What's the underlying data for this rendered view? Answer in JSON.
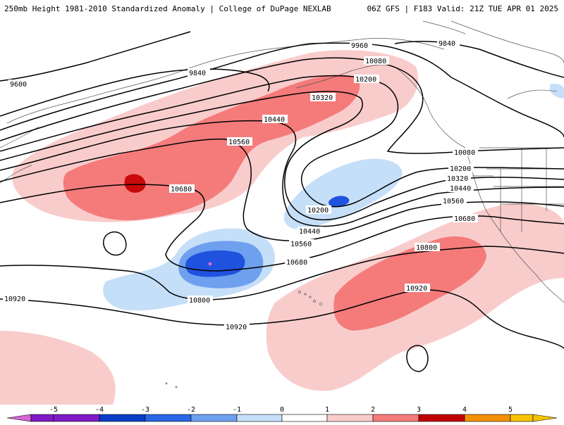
{
  "header": {
    "left_title": "250mb Height 1981-2010 Standardized Anomaly | College of DuPage NEXLAB",
    "right_title": "06Z GFS | F183 Valid: 21Z TUE APR 01 2025"
  },
  "contour_labels": [
    "9600",
    "9840",
    "9960",
    "9840",
    "10080",
    "10200",
    "10320",
    "10440",
    "10560",
    "10680",
    "10080",
    "10200",
    "10320",
    "10440",
    "10560",
    "10680",
    "10200",
    "10440",
    "10560",
    "10680",
    "10800",
    "10800",
    "10920",
    "10920",
    "10920"
  ],
  "colorbar": {
    "ticks": [
      "-5",
      "-4",
      "-3",
      "-2",
      "-1",
      "0",
      "1",
      "2",
      "3",
      "4",
      "5"
    ],
    "colors": [
      "#d766d6",
      "#7f1ac7",
      "#0a3cc7",
      "#2a66e6",
      "#6ea0ef",
      "#c6dff8",
      "#ffffff",
      "#f9cccc",
      "#f57b7b",
      "#e03838",
      "#c00000",
      "#f29000",
      "#f6c300"
    ]
  },
  "anomaly_colors": {
    "pos1": "#f9cccc",
    "pos2": "#f57b7b",
    "pos3": "#c80a0a",
    "neg1": "#c6dff8",
    "neg2": "#6ea0ef",
    "neg3": "#1f52de",
    "neg4": "#0a3cc7",
    "extreme": "#d766d6"
  }
}
